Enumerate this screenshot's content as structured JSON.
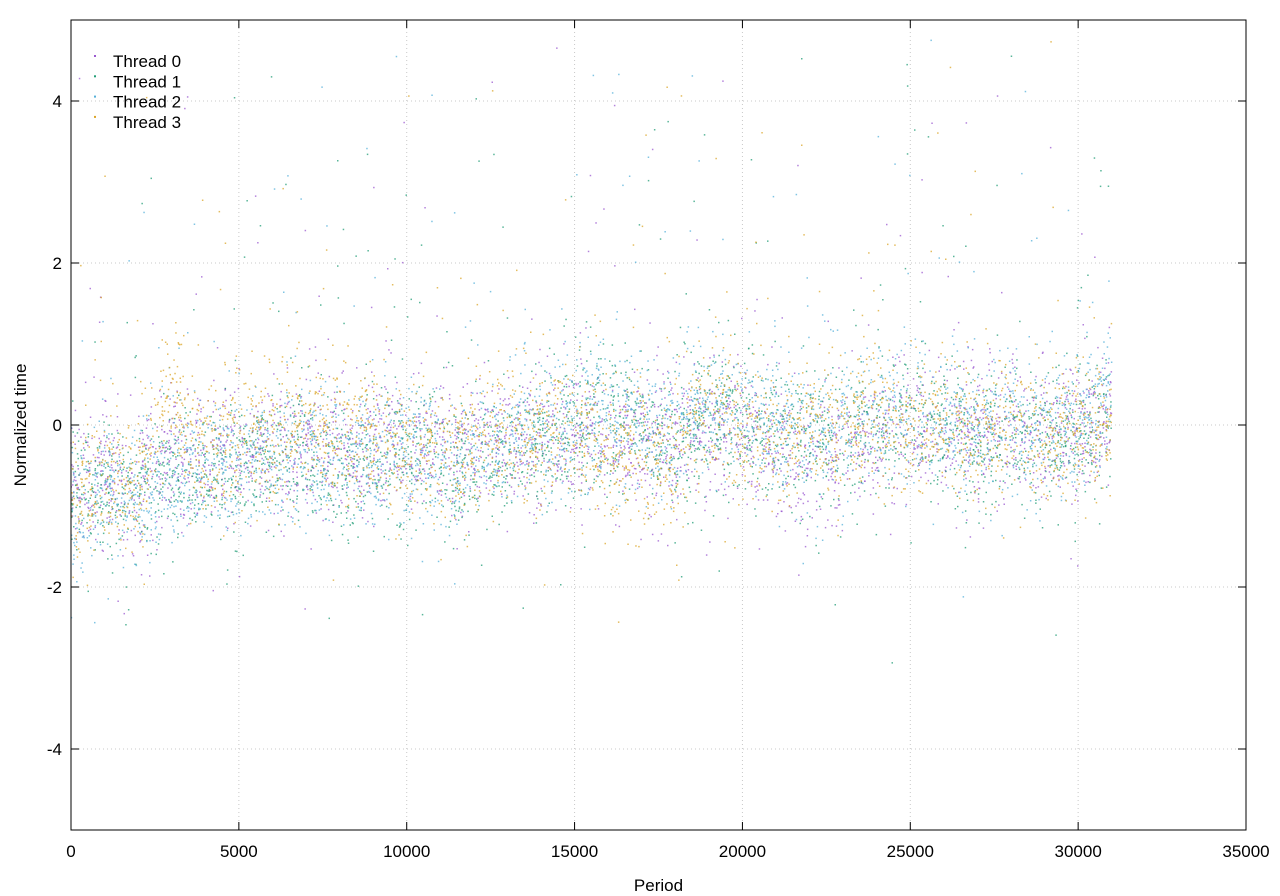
{
  "chart_data": {
    "type": "scatter",
    "title": "",
    "xlabel": "Period",
    "ylabel": "Normalized time",
    "xlim": [
      0,
      35000
    ],
    "ylim": [
      -5,
      5
    ],
    "xticks": [
      0,
      5000,
      10000,
      15000,
      20000,
      25000,
      30000,
      35000
    ],
    "yticks": [
      -4,
      -2,
      0,
      2,
      4
    ],
    "grid": true,
    "legend_position": "top-left",
    "n_periods": 31000,
    "series": [
      {
        "name": "Thread 0",
        "color": "#9b59d0",
        "x": [
          0,
          500,
          1000,
          2000,
          3000,
          4000,
          5000,
          6000,
          7000,
          8000,
          9000,
          10000,
          11000,
          12000,
          13000,
          14000,
          15000,
          16000,
          17000,
          18000,
          19000,
          20000,
          21000,
          22000,
          23000,
          24000,
          25000,
          26000,
          27000,
          28000,
          29000,
          30000,
          31000
        ],
        "y": [
          -0.8,
          -0.7,
          -0.6,
          -0.7,
          -0.4,
          -0.4,
          -0.3,
          -0.3,
          -0.2,
          -0.3,
          -0.2,
          -0.2,
          -0.3,
          -0.3,
          -0.2,
          -0.2,
          -0.1,
          -0.2,
          -0.2,
          -0.2,
          -0.1,
          -0.1,
          -0.4,
          -0.5,
          -0.3,
          -0.2,
          -0.1,
          -0.1,
          -0.1,
          0.0,
          -0.2,
          -0.1,
          0.0
        ]
      },
      {
        "name": "Thread 1",
        "color": "#229e77",
        "x": [
          0,
          500,
          1000,
          2000,
          3000,
          4000,
          5000,
          6000,
          7000,
          8000,
          9000,
          10000,
          11000,
          12000,
          13000,
          14000,
          15000,
          16000,
          17000,
          18000,
          19000,
          20000,
          21000,
          22000,
          23000,
          24000,
          25000,
          26000,
          27000,
          28000,
          29000,
          30000,
          31000
        ],
        "y": [
          -0.9,
          -0.8,
          -0.7,
          -0.8,
          -0.6,
          -0.7,
          -0.5,
          -0.4,
          -0.3,
          -0.6,
          -0.5,
          -0.4,
          -0.5,
          -0.6,
          -0.3,
          -0.2,
          0.0,
          0.0,
          0.0,
          -0.3,
          0.1,
          0.0,
          -0.1,
          -0.2,
          -0.2,
          0.0,
          0.1,
          0.0,
          -0.3,
          -0.1,
          -0.2,
          -0.1,
          0.1
        ]
      },
      {
        "name": "Thread 2",
        "color": "#56b0d9",
        "x": [
          0,
          500,
          1000,
          2000,
          3000,
          4000,
          5000,
          6000,
          7000,
          8000,
          9000,
          10000,
          11000,
          12000,
          13000,
          14000,
          15000,
          16000,
          17000,
          18000,
          19000,
          20000,
          21000,
          22000,
          23000,
          24000,
          25000,
          26000,
          27000,
          28000,
          29000,
          30000,
          31000
        ],
        "y": [
          -1.1,
          -1.0,
          -0.8,
          -0.9,
          -0.7,
          -0.6,
          -0.4,
          -0.4,
          -0.3,
          -0.4,
          -0.4,
          -0.3,
          -0.4,
          -0.4,
          -0.2,
          -0.1,
          0.1,
          0.1,
          0.0,
          -0.1,
          0.2,
          0.2,
          0.0,
          -0.1,
          0.0,
          0.1,
          0.2,
          0.0,
          0.0,
          0.0,
          -0.1,
          0.0,
          0.5
        ]
      },
      {
        "name": "Thread 3",
        "color": "#dba52a",
        "x": [
          0,
          500,
          1000,
          2000,
          3000,
          4000,
          5000,
          6000,
          7000,
          8000,
          9000,
          10000,
          11000,
          12000,
          13000,
          14000,
          15000,
          16000,
          17000,
          18000,
          19000,
          20000,
          21000,
          22000,
          23000,
          24000,
          25000,
          26000,
          27000,
          28000,
          29000,
          30000,
          31000
        ],
        "y": [
          -0.9,
          -0.9,
          -0.6,
          -0.7,
          0.4,
          -0.3,
          0.0,
          -0.1,
          -0.1,
          -0.1,
          -0.1,
          -0.3,
          -0.4,
          -0.3,
          -0.1,
          -0.1,
          -0.1,
          -0.3,
          -0.4,
          -0.4,
          0.3,
          -0.1,
          -0.2,
          0.0,
          0.0,
          0.1,
          -0.1,
          0.0,
          -0.1,
          0.1,
          -0.2,
          0.0,
          0.0
        ]
      }
    ]
  }
}
